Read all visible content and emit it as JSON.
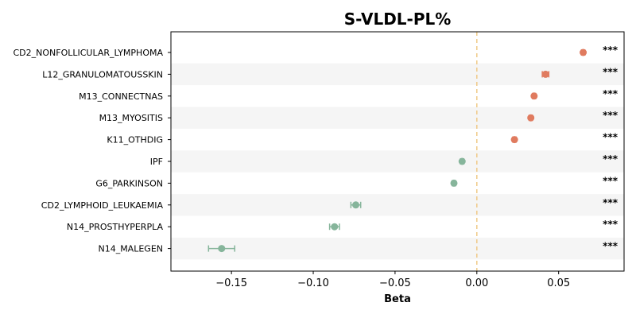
{
  "chart_data": {
    "type": "scatter",
    "title": "S-VLDL-PL%",
    "xlabel": "Beta",
    "ylabel": "",
    "xlim": [
      -0.187,
      0.09
    ],
    "xticks": [
      -0.15,
      -0.1,
      -0.05,
      0.0,
      0.05
    ],
    "xtick_labels": [
      "−0.15",
      "−0.10",
      "−0.05",
      "0.00",
      "0.05"
    ],
    "reference_line": 0.0,
    "categories": [
      "CD2_NONFOLLICULAR_LYMPHOMA",
      "L12_GRANULOMATOUSSKIN",
      "M13_CONNECTNAS",
      "M13_MYOSITIS",
      "K11_OTHDIG",
      "IPF",
      "G6_PARKINSON",
      "CD2_LYMPHOID_LEUKAEMIA",
      "N14_PROSTHYPERPLA",
      "N14_MALEGEN"
    ],
    "values": [
      0.065,
      0.042,
      0.035,
      0.033,
      0.023,
      -0.009,
      -0.014,
      -0.074,
      -0.087,
      -0.156
    ],
    "ci_low": [
      0.064,
      0.04,
      0.034,
      0.032,
      0.022,
      -0.01,
      -0.015,
      -0.077,
      -0.09,
      -0.164
    ],
    "ci_high": [
      0.066,
      0.044,
      0.036,
      0.034,
      0.024,
      -0.008,
      -0.013,
      -0.071,
      -0.084,
      -0.148
    ],
    "significance": [
      "***",
      "***",
      "***",
      "***",
      "***",
      "***",
      "***",
      "***",
      "***",
      "***"
    ],
    "colors": {
      "positive": "#e07b5f",
      "negative": "#86b59b",
      "reference": "#f0c987",
      "band": "#f5f5f5"
    },
    "grid": false
  }
}
